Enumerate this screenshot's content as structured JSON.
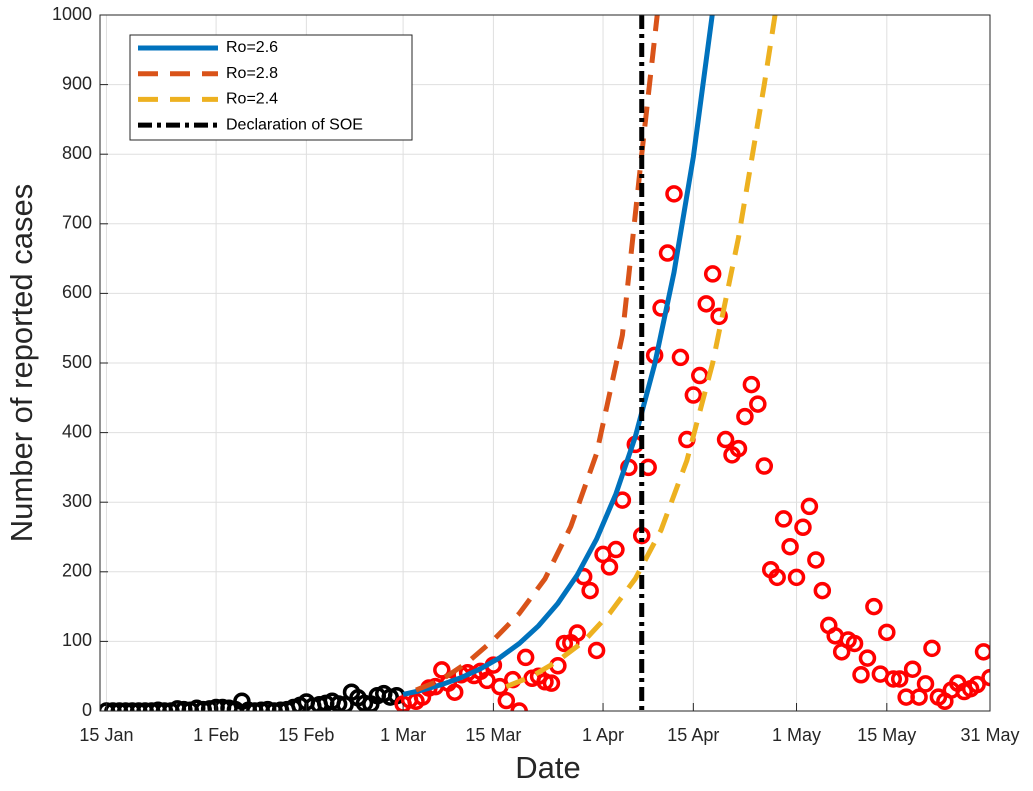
{
  "chart_data": {
    "type": "line",
    "xlabel": "Date",
    "ylabel": "Number of reported cases",
    "xlim": [
      -1,
      137
    ],
    "ylim": [
      0,
      1000
    ],
    "xticks": [
      {
        "value": 0,
        "label": "15 Jan"
      },
      {
        "value": 17,
        "label": "1 Feb"
      },
      {
        "value": 31,
        "label": "15 Feb"
      },
      {
        "value": 46,
        "label": "1 Mar"
      },
      {
        "value": 60,
        "label": "15 Mar"
      },
      {
        "value": 77,
        "label": "1 Apr"
      },
      {
        "value": 91,
        "label": "15 Apr"
      },
      {
        "value": 107,
        "label": "1 May"
      },
      {
        "value": 121,
        "label": "15 May"
      },
      {
        "value": 137,
        "label": "31 May"
      }
    ],
    "yticks": [
      0,
      100,
      200,
      300,
      400,
      500,
      600,
      700,
      800,
      900,
      1000
    ],
    "grid": true,
    "legend": "upper left",
    "series": [
      {
        "name": "Ro=2.6",
        "color": "#0072bd",
        "dash": false,
        "x": [
          46,
          49,
          52,
          55,
          58,
          61,
          64,
          67,
          70,
          73,
          76,
          79,
          82,
          85,
          88,
          91,
          94
        ],
        "values": [
          23.8,
          30.1,
          38,
          48,
          60.7,
          76.7,
          96.9,
          122.4,
          154.7,
          195.4,
          247,
          312,
          394,
          498,
          630,
          796,
          1005
        ]
      },
      {
        "name": "Ro=2.8",
        "color": "#d95319",
        "dash": true,
        "x": [
          48,
          52,
          56,
          60,
          64,
          68,
          72,
          76,
          80,
          83,
          86
        ],
        "values": [
          30,
          45,
          70,
          102,
          140,
          190,
          265,
          370,
          540,
          800,
          1050
        ]
      },
      {
        "name": "Ro=2.4",
        "color": "#edb120",
        "dash": true,
        "x": [
          62,
          66,
          70,
          74,
          78,
          82,
          86,
          90,
          94,
          98,
          102,
          105
        ],
        "values": [
          35,
          50,
          72,
          100,
          140,
          190,
          260,
          360,
          500,
          680,
          900,
          1080
        ]
      }
    ],
    "vline": {
      "name": "Declaration of SOE",
      "color": "#000000",
      "x": 83
    },
    "points": [
      {
        "color": "#000000",
        "x": [
          0,
          1,
          2,
          3,
          4,
          5,
          6,
          7,
          8,
          9,
          10,
          11,
          12,
          13,
          14,
          15,
          16,
          17,
          18,
          19,
          20,
          21,
          22,
          23,
          24,
          25,
          26,
          27,
          28,
          29,
          30,
          31,
          32,
          33,
          34,
          35,
          36,
          37,
          38,
          39,
          40,
          41,
          42,
          43,
          44,
          45
        ],
        "values": [
          0,
          0,
          0,
          0,
          0,
          0,
          0,
          0,
          1,
          0,
          0,
          3,
          2,
          1,
          4,
          2,
          3,
          5,
          5,
          4,
          2,
          14,
          1,
          0,
          1,
          2,
          0,
          1,
          2,
          5,
          8,
          13,
          7,
          9,
          11,
          14,
          10,
          9,
          27,
          19,
          11,
          10,
          22,
          25,
          20,
          22
        ]
      },
      {
        "color": "#ff0000",
        "x": [
          46,
          47,
          48,
          49,
          50,
          51,
          52,
          53,
          54,
          55,
          56,
          57,
          58,
          59,
          60,
          61,
          62,
          63,
          64,
          65,
          66,
          67,
          68,
          69,
          70,
          71,
          72,
          73,
          74,
          75,
          76,
          77,
          78,
          79,
          80,
          81,
          82,
          83,
          84,
          85,
          86,
          87,
          88,
          89,
          90,
          91,
          92,
          93,
          94,
          95,
          96,
          97,
          98,
          99,
          100,
          101,
          102,
          103,
          104,
          105,
          106,
          107,
          108,
          109,
          110,
          111,
          112,
          113,
          114,
          115,
          116,
          117,
          118,
          119,
          120,
          121,
          122,
          123,
          124,
          125,
          126,
          127,
          128,
          129,
          130,
          131,
          132,
          133,
          134,
          135,
          136,
          137
        ],
        "values": [
          10,
          16,
          14,
          20,
          33,
          35,
          59,
          40,
          27,
          52,
          55,
          51,
          57,
          44,
          66,
          35,
          15,
          45,
          0,
          77,
          47,
          50,
          42,
          40,
          65,
          97,
          98,
          112,
          193,
          173,
          87,
          225,
          207,
          232,
          303,
          350,
          383,
          252,
          350,
          511,
          579,
          658,
          743,
          508,
          390,
          454,
          482,
          585,
          628,
          567,
          390,
          368,
          377,
          423,
          469,
          441,
          352,
          203,
          192,
          276,
          236,
          192,
          264,
          294,
          217,
          173,
          123,
          108,
          85,
          102,
          97,
          52,
          76,
          150,
          53,
          113,
          46,
          46,
          20,
          60,
          20,
          39,
          90,
          20,
          14,
          30,
          40,
          28,
          32,
          38,
          85,
          48
        ]
      }
    ]
  }
}
